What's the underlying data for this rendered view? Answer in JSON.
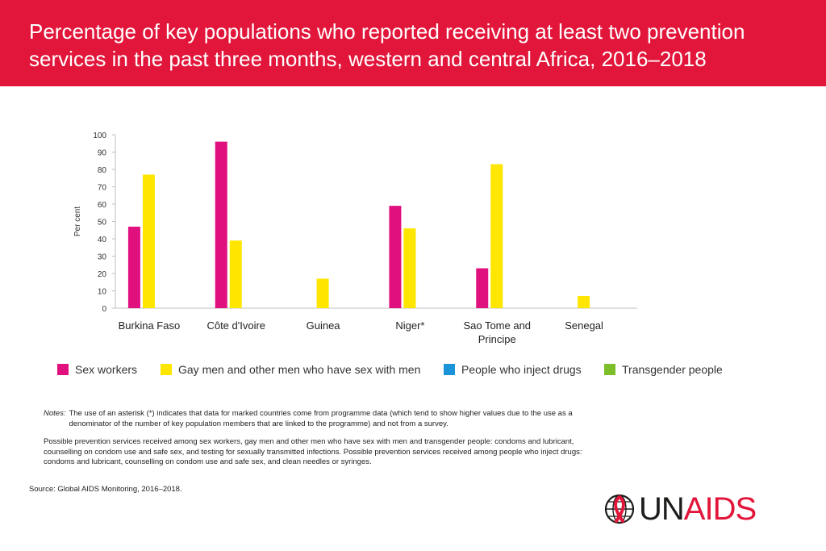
{
  "header": {
    "title": "Percentage of key populations who reported receiving at least two prevention services in the past three months, western and central Africa, 2016–2018"
  },
  "colors": {
    "header_bg": "#e2163a",
    "sex_workers": "#e0107f",
    "msm": "#ffe600",
    "pwid": "#1a93d8",
    "transgender": "#7cbf2a"
  },
  "chart_data": {
    "type": "bar",
    "title": "",
    "xlabel": "",
    "ylabel": "Per cent",
    "ylim": [
      0,
      100
    ],
    "yticks": [
      0,
      10,
      20,
      30,
      40,
      50,
      60,
      70,
      80,
      90,
      100
    ],
    "grid": false,
    "legend_position": "bottom",
    "categories": [
      "Burkina Faso",
      "Côte d'Ivoire",
      "Guinea",
      "Niger*",
      "Sao Tome and Principe",
      "Senegal"
    ],
    "series": [
      {
        "name": "Sex workers",
        "color": "#e0107f",
        "values": [
          47,
          96,
          null,
          59,
          23,
          null
        ]
      },
      {
        "name": "Gay men and other men who have sex with men",
        "color": "#ffe600",
        "values": [
          77,
          39,
          17,
          46,
          83,
          7
        ]
      },
      {
        "name": "People who inject drugs",
        "color": "#1a93d8",
        "values": [
          null,
          null,
          null,
          null,
          null,
          null
        ]
      },
      {
        "name": "Transgender people",
        "color": "#7cbf2a",
        "values": [
          null,
          null,
          null,
          null,
          null,
          null
        ]
      }
    ]
  },
  "notes": {
    "label": "Notes:",
    "line1": "The use of an asterisk (*) indicates that data for marked countries come from programme data (which tend to show higher values due to the use as a denominator of the number of key population members that are linked to the programme) and not from a survey.",
    "paragraph2": "Possible prevention services received among sex workers, gay men and other men who have sex with men and transgender people: condoms and lubricant, counselling on condom use and safe sex, and testing for sexually transmitted infections. Possible prevention services received among people who inject drugs: condoms and lubricant, counselling on condom use and safe sex, and clean needles or syringes."
  },
  "source": "Source: Global AIDS Monitoring, 2016–2018.",
  "logo": {
    "icon": "red-ribbon-globe-icon",
    "text_un": "UN",
    "text_aids": "AIDS"
  }
}
